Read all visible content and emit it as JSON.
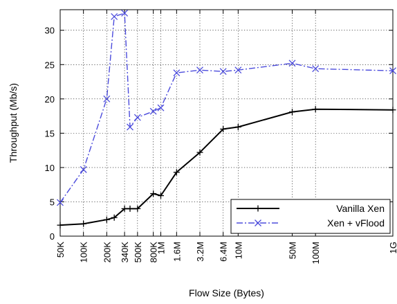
{
  "chart_data": {
    "type": "line",
    "title": "",
    "xlabel": "Flow Size (Bytes)",
    "ylabel": "Throughput (Mb/s)",
    "xscale": "log",
    "xlim": [
      50000,
      1000000000
    ],
    "ylim": [
      0,
      33
    ],
    "grid": true,
    "legend_position": "bottom-right",
    "x_ticks": [
      {
        "value": 50000,
        "label": "50K"
      },
      {
        "value": 100000,
        "label": "100K"
      },
      {
        "value": 200000,
        "label": "200K"
      },
      {
        "value": 340000,
        "label": "340K"
      },
      {
        "value": 500000,
        "label": "500K"
      },
      {
        "value": 800000,
        "label": "800K"
      },
      {
        "value": 1000000,
        "label": "1M"
      },
      {
        "value": 1600000,
        "label": "1.6M"
      },
      {
        "value": 3200000,
        "label": "3.2M"
      },
      {
        "value": 6400000,
        "label": "6.4M"
      },
      {
        "value": 10000000,
        "label": "10M"
      },
      {
        "value": 50000000,
        "label": "50M"
      },
      {
        "value": 100000000,
        "label": "100M"
      },
      {
        "value": 1000000000,
        "label": "1G"
      }
    ],
    "y_ticks": [
      0,
      5,
      10,
      15,
      20,
      25,
      30
    ],
    "series": [
      {
        "name": "Vanilla Xen",
        "color": "#000000",
        "line_style": "solid",
        "marker": "plus",
        "x": [
          50000,
          100000,
          200000,
          250000,
          340000,
          400000,
          500000,
          800000,
          1000000,
          1600000,
          3200000,
          6400000,
          10000000,
          50000000,
          100000000,
          1000000000
        ],
        "y": [
          1.6,
          1.8,
          2.4,
          2.7,
          4.0,
          4.0,
          4.0,
          6.2,
          5.9,
          9.3,
          12.2,
          15.6,
          15.9,
          18.1,
          18.5,
          18.4
        ]
      },
      {
        "name": "Xen + vFlood",
        "color": "#4b4bdc",
        "line_style": "dashdot",
        "marker": "x",
        "x": [
          50000,
          100000,
          200000,
          250000,
          340000,
          400000,
          500000,
          800000,
          1000000,
          1600000,
          3200000,
          6400000,
          10000000,
          50000000,
          100000000,
          1000000000
        ],
        "y": [
          4.9,
          9.7,
          20.0,
          32.0,
          32.5,
          15.9,
          17.3,
          18.2,
          18.7,
          23.8,
          24.2,
          24.0,
          24.2,
          25.2,
          24.4,
          24.1
        ]
      }
    ]
  }
}
